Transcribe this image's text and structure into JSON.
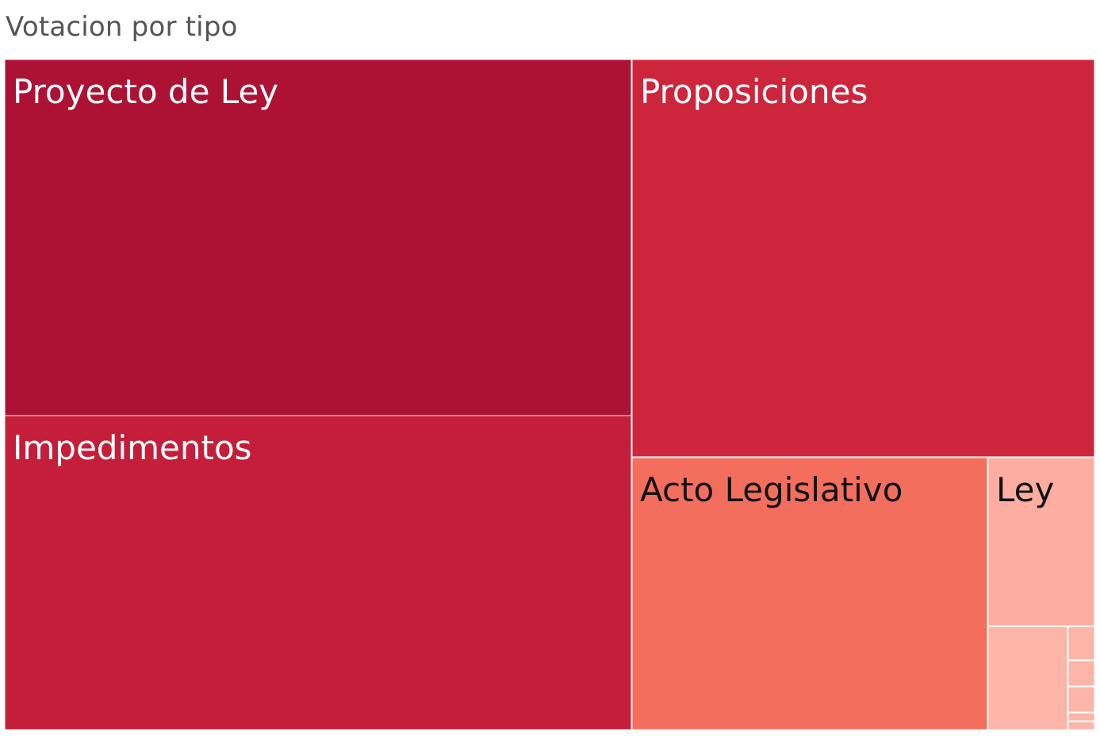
{
  "title": "Votacion por tipo",
  "chart_data": {
    "type": "treemap",
    "title": "Votacion por tipo",
    "items": [
      {
        "label": "Proyecto de Ley",
        "relative_size": 0.28,
        "color": "#ad1235",
        "label_color": "#ffffff"
      },
      {
        "label": "Impedimentos",
        "relative_size": 0.247,
        "color": "#c41e3a",
        "label_color": "#ffffff"
      },
      {
        "label": "Proposiciones",
        "relative_size": 0.23,
        "color": "#cd253c",
        "label_color": "#ffffff"
      },
      {
        "label": "Acto Legislativo",
        "relative_size": 0.121,
        "color": "#f46e5e",
        "label_color": "#111111"
      },
      {
        "label": "Ley",
        "relative_size": 0.036,
        "color": "#fdaea0",
        "label_color": "#111111"
      },
      {
        "label": "",
        "relative_size": 0.015,
        "color": "#fdb5a8",
        "label_color": "#111111"
      },
      {
        "label": "",
        "relative_size": 0.0014,
        "color": "#fdb5a8",
        "label_color": "#111111"
      },
      {
        "label": "",
        "relative_size": 0.001,
        "color": "#fdb5a8",
        "label_color": "#111111"
      },
      {
        "label": "",
        "relative_size": 0.001,
        "color": "#fdb5a8",
        "label_color": "#111111"
      },
      {
        "label": "",
        "relative_size": 0.0003,
        "color": "#fdb5a8",
        "label_color": "#111111"
      },
      {
        "label": "",
        "relative_size": 0.0003,
        "color": "#fdb5a8",
        "label_color": "#111111"
      }
    ]
  }
}
